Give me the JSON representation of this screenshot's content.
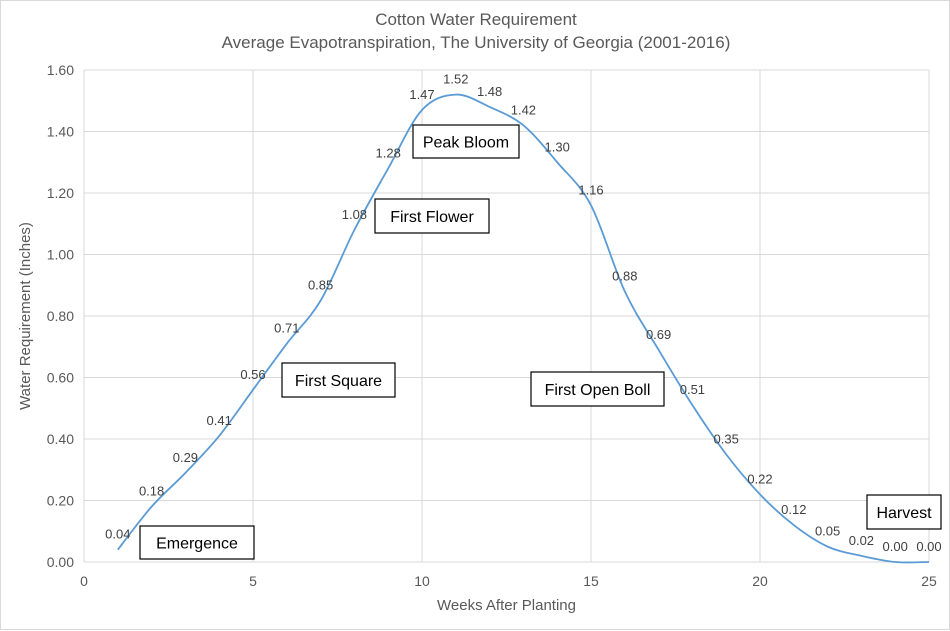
{
  "chart_data": {
    "type": "line",
    "title": "Cotton Water Requirement",
    "subtitle": "Average Evapotranspiration, The University of Georgia (2001-2016)",
    "xlabel": "Weeks After Planting",
    "ylabel": "Water Requirement (Inches)",
    "xlim": [
      0,
      25
    ],
    "ylim": [
      0,
      1.6
    ],
    "xticks": [
      "0",
      "5",
      "10",
      "15",
      "20",
      "25"
    ],
    "yticks": [
      "0.00",
      "0.20",
      "0.40",
      "0.60",
      "0.80",
      "1.00",
      "1.20",
      "1.40",
      "1.60"
    ],
    "grid": true,
    "smooth": true,
    "line_color": "#5b9bd5",
    "x": [
      1,
      2,
      3,
      4,
      5,
      6,
      7,
      8,
      9,
      10,
      11,
      12,
      13,
      14,
      15,
      16,
      17,
      18,
      19,
      20,
      21,
      22,
      23,
      24,
      25
    ],
    "values": [
      0.04,
      0.18,
      0.29,
      0.41,
      0.56,
      0.71,
      0.85,
      1.08,
      1.28,
      1.47,
      1.52,
      1.48,
      1.42,
      1.3,
      1.16,
      0.88,
      0.69,
      0.51,
      0.35,
      0.22,
      0.12,
      0.05,
      0.02,
      0.0,
      0.0
    ],
    "data_labels": [
      "0.04",
      "0.18",
      "0.29",
      "0.41",
      "0.56",
      "0.71",
      "0.85",
      "1.08",
      "1.28",
      "1.47",
      "1.52",
      "1.48",
      "1.42",
      "1.30",
      "1.16",
      "0.88",
      "0.69",
      "0.51",
      "0.35",
      "0.22",
      "0.12",
      "0.05",
      "0.02",
      "0.00",
      "0.00"
    ],
    "annotations": [
      "Emergence",
      "First Square",
      "First Flower",
      "Peak Bloom",
      "First Open Boll",
      "Harvest"
    ]
  }
}
